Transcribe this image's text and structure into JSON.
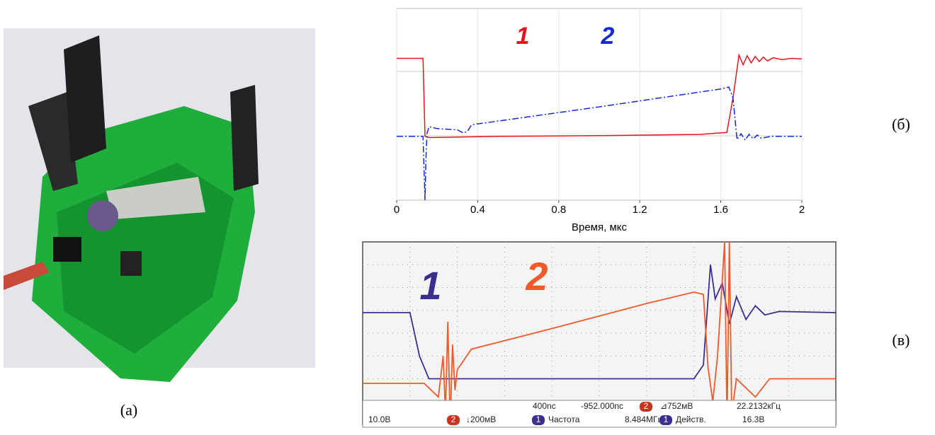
{
  "photo_caption": "(а)",
  "chart_data": [
    {
      "type": "line",
      "caption": "(б)",
      "xlabel": "Время, мкс",
      "xlim": [
        0,
        2
      ],
      "ylim": [
        -1,
        2
      ],
      "xticks": [
        0,
        0.4,
        0.8,
        1.2,
        1.6,
        2
      ],
      "grid": true,
      "series": [
        {
          "name": "1",
          "color": "#e8141c",
          "linestyle": "solid",
          "x": [
            0,
            0.13,
            0.14,
            0.16,
            0.5,
            1.0,
            1.5,
            1.63,
            1.66,
            1.69,
            1.71,
            1.73,
            1.75,
            1.77,
            1.79,
            1.81,
            1.83,
            1.86,
            1.9,
            1.95,
            2.0
          ],
          "values": [
            1.22,
            1.22,
            0.0,
            -0.02,
            0.0,
            0.01,
            0.03,
            0.06,
            0.6,
            1.27,
            1.12,
            1.26,
            1.15,
            1.25,
            1.17,
            1.24,
            1.18,
            1.23,
            1.2,
            1.22,
            1.21
          ]
        },
        {
          "name": "2",
          "color": "#1428e0",
          "linestyle": "dashdot",
          "x": [
            0,
            0.13,
            0.14,
            0.145,
            0.15,
            0.16,
            0.2,
            0.3,
            0.33,
            0.35,
            0.37,
            1.0,
            1.6,
            1.64,
            1.66,
            1.68,
            1.7,
            1.72,
            1.74,
            1.76,
            1.78,
            1.8,
            1.85,
            2.0
          ],
          "values": [
            0,
            0,
            -1,
            -0.3,
            0.05,
            0.15,
            0.12,
            0.1,
            0.05,
            0.08,
            0.18,
            0.46,
            0.74,
            0.77,
            0.6,
            -0.05,
            0.04,
            -0.06,
            0.03,
            -0.04,
            0.02,
            -0.03,
            0,
            0
          ]
        }
      ]
    },
    {
      "type": "line",
      "caption": "(в)",
      "xlim": [
        0,
        10
      ],
      "ylim": [
        0,
        8
      ],
      "grid": true,
      "series": [
        {
          "name": "1",
          "color": "#3a2f8f",
          "linestyle": "solid",
          "x": [
            0,
            1.0,
            1.2,
            1.4,
            7.0,
            7.2,
            7.35,
            7.45,
            7.6,
            7.75,
            7.9,
            8.1,
            8.3,
            8.5,
            8.8,
            10
          ],
          "values": [
            4.9,
            4.9,
            3.0,
            2.0,
            2.0,
            2.6,
            7.0,
            5.5,
            6.2,
            4.4,
            5.6,
            4.6,
            5.2,
            4.8,
            4.95,
            4.9
          ]
        },
        {
          "name": "2",
          "color": "#f05a28",
          "linestyle": "solid",
          "x": [
            0,
            1.3,
            1.6,
            1.7,
            1.75,
            1.8,
            1.85,
            1.9,
            1.95,
            2.0,
            2.3,
            4.0,
            6.0,
            7.0,
            7.2,
            7.3,
            7.4,
            7.5,
            7.65,
            7.7,
            7.75,
            7.8,
            7.9,
            8.3,
            8.6,
            10
          ],
          "values": [
            1.8,
            1.8,
            1.2,
            3.0,
            0.5,
            4.5,
            0,
            3.5,
            1.5,
            2.4,
            3.3,
            4.2,
            5.3,
            5.8,
            5.7,
            2.5,
            1.0,
            3.0,
            8,
            0,
            8,
            0.5,
            2.0,
            1.2,
            2.0,
            2.0
          ]
        }
      ],
      "readouts": [
        "400nc",
        "-952.000nc",
        "2",
        "⊿752мВ",
        "22.2132кГц",
        "10.0В",
        "2",
        "↓200мВ",
        "1",
        "Частота",
        "8.484МГц",
        "1",
        "Действ.",
        "16.3В"
      ]
    }
  ]
}
